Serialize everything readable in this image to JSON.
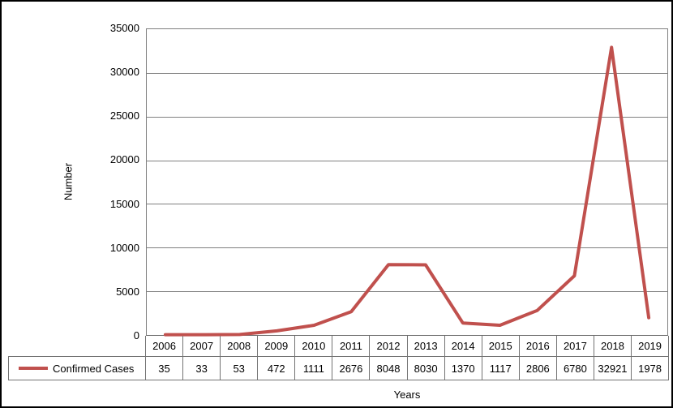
{
  "window": {
    "background": "#ffffff",
    "frame_border_color": "#000000",
    "grid_color": "#808080",
    "table_border_color": "#737373"
  },
  "chart_data": {
    "type": "line",
    "title": "",
    "xlabel": "Years",
    "ylabel": "Number",
    "ylim": [
      0,
      35000
    ],
    "ytick_step": 5000,
    "yticks": [
      0,
      5000,
      10000,
      15000,
      20000,
      25000,
      30000,
      35000
    ],
    "grid": "horizontal",
    "legend_position": "data-table-left",
    "categories": [
      "2006",
      "2007",
      "2008",
      "2009",
      "2010",
      "2011",
      "2012",
      "2013",
      "2014",
      "2015",
      "2016",
      "2017",
      "2018",
      "2019"
    ],
    "series": [
      {
        "name": "Confirmed Cases",
        "color": "#C0504D",
        "values": [
          35,
          33,
          53,
          472,
          1111,
          2676,
          8048,
          8030,
          1370,
          1117,
          2806,
          6780,
          32921,
          1978
        ]
      }
    ]
  }
}
